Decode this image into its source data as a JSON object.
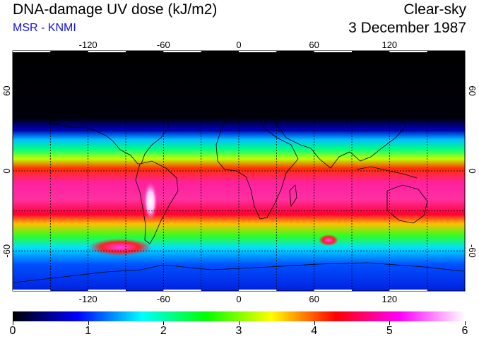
{
  "header": {
    "title": "DNA-damage UV dose (kJ/m2)",
    "source": "MSR - KNMI",
    "condition": "Clear-sky",
    "date": "3 December 1987"
  },
  "map": {
    "lon_ticks": [
      "-120",
      "-60",
      "0",
      "60",
      "120"
    ],
    "lat_ticks": [
      "60",
      "0",
      "-60"
    ],
    "lon_values": [
      -120,
      -60,
      0,
      60,
      120
    ],
    "lat_values": [
      60,
      0,
      -60
    ],
    "lon_range": [
      -180,
      180
    ],
    "lat_range": [
      -90,
      90
    ],
    "grid_lines": "dotted every 30 degrees"
  },
  "colorbar": {
    "min": 0,
    "max": 6,
    "labels": [
      "0",
      "1",
      "2",
      "3",
      "4",
      "5",
      "6"
    ],
    "colors": [
      "#000000",
      "#0000ff",
      "#00ffff",
      "#00ff00",
      "#ffff00",
      "#ff0000",
      "#ff00ff",
      "#ffffff"
    ]
  }
}
